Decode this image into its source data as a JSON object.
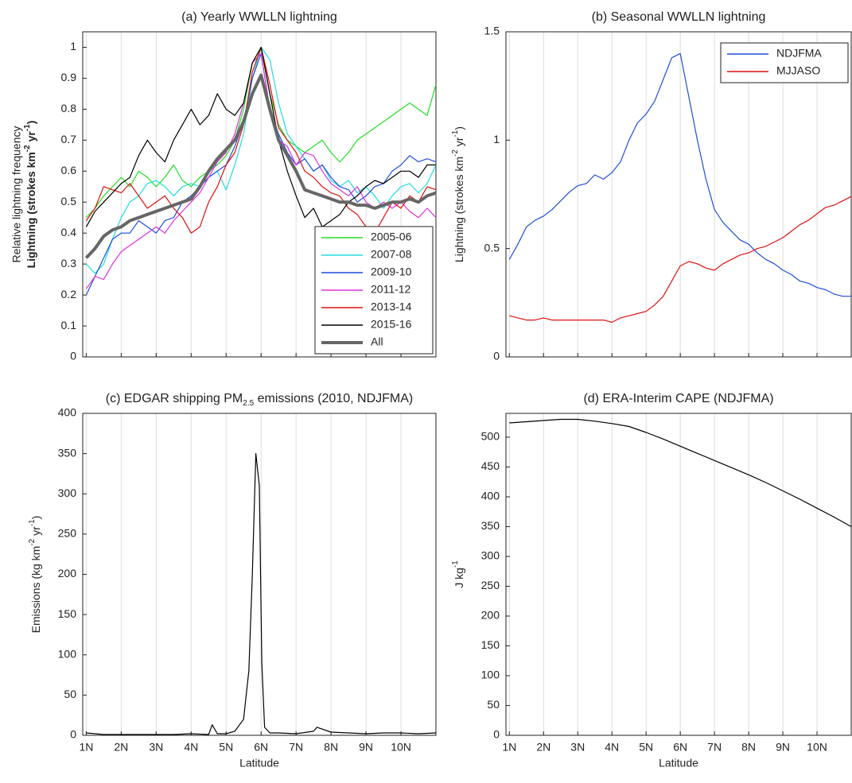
{
  "chart_data": [
    {
      "type": "line",
      "title": "(a) Yearly WWLLN lightning",
      "ylabel": "Relative lightning frequency",
      "ylabel2": [
        "Lightning (strokes km",
        "-2",
        " yr",
        "-1",
        ")"
      ],
      "x": [
        1,
        1.25,
        1.5,
        1.75,
        2,
        2.25,
        2.5,
        2.75,
        3,
        3.25,
        3.5,
        3.75,
        4,
        4.25,
        4.5,
        4.75,
        5,
        5.25,
        5.5,
        5.75,
        6,
        6.25,
        6.5,
        6.75,
        7,
        7.25,
        7.5,
        7.75,
        8,
        8.25,
        8.5,
        8.75,
        9,
        9.25,
        9.5,
        9.75,
        10,
        10.25,
        10.5,
        10.75,
        11
      ],
      "xlim": [
        0.9,
        11
      ],
      "xticks": [
        1,
        2,
        3,
        4,
        5,
        6,
        7,
        8,
        9,
        10
      ],
      "ylim": [
        0,
        1.05
      ],
      "yticks": [
        0,
        0.1,
        0.2,
        0.3,
        0.4,
        0.5,
        0.6,
        0.7,
        0.8,
        0.9,
        1
      ],
      "grid": true,
      "legend": "lower right",
      "series": [
        {
          "name": "2005-06",
          "color": "#22dd22",
          "values": [
            0.45,
            0.48,
            0.52,
            0.55,
            0.58,
            0.55,
            0.6,
            0.58,
            0.55,
            0.58,
            0.62,
            0.57,
            0.55,
            0.58,
            0.6,
            0.62,
            0.65,
            0.7,
            0.8,
            0.95,
            1.0,
            0.85,
            0.75,
            0.7,
            0.68,
            0.66,
            0.68,
            0.7,
            0.66,
            0.63,
            0.66,
            0.7,
            0.72,
            0.74,
            0.76,
            0.78,
            0.8,
            0.82,
            0.8,
            0.78,
            0.88
          ]
        },
        {
          "name": "2007-08",
          "color": "#22dddd",
          "values": [
            0.3,
            0.27,
            0.3,
            0.38,
            0.45,
            0.5,
            0.52,
            0.56,
            0.57,
            0.55,
            0.52,
            0.55,
            0.56,
            0.55,
            0.58,
            0.6,
            0.54,
            0.62,
            0.72,
            0.9,
            1.0,
            0.96,
            0.82,
            0.72,
            0.68,
            0.64,
            0.6,
            0.62,
            0.57,
            0.55,
            0.57,
            0.53,
            0.55,
            0.52,
            0.48,
            0.52,
            0.55,
            0.56,
            0.53,
            0.56,
            0.62
          ]
        },
        {
          "name": "2009-10",
          "color": "#1f4fd8",
          "values": [
            0.2,
            0.26,
            0.32,
            0.38,
            0.4,
            0.4,
            0.44,
            0.42,
            0.4,
            0.44,
            0.45,
            0.5,
            0.52,
            0.55,
            0.58,
            0.6,
            0.62,
            0.68,
            0.76,
            0.9,
            0.98,
            0.8,
            0.72,
            0.66,
            0.62,
            0.64,
            0.6,
            0.62,
            0.58,
            0.55,
            0.54,
            0.5,
            0.52,
            0.55,
            0.56,
            0.6,
            0.62,
            0.65,
            0.63,
            0.64,
            0.63
          ]
        },
        {
          "name": "2011-12",
          "color": "#dd33dd",
          "values": [
            0.22,
            0.26,
            0.25,
            0.3,
            0.34,
            0.36,
            0.38,
            0.4,
            0.42,
            0.4,
            0.44,
            0.47,
            0.5,
            0.53,
            0.58,
            0.63,
            0.66,
            0.72,
            0.82,
            0.95,
            0.98,
            0.8,
            0.7,
            0.68,
            0.62,
            0.66,
            0.65,
            0.6,
            0.56,
            0.54,
            0.52,
            0.55,
            0.5,
            0.48,
            0.5,
            0.48,
            0.5,
            0.47,
            0.45,
            0.48,
            0.45
          ]
        },
        {
          "name": "2013-14",
          "color": "#dd1111",
          "values": [
            0.44,
            0.48,
            0.55,
            0.54,
            0.53,
            0.56,
            0.52,
            0.48,
            0.5,
            0.52,
            0.48,
            0.45,
            0.4,
            0.42,
            0.5,
            0.55,
            0.62,
            0.66,
            0.75,
            0.92,
            1.0,
            0.88,
            0.74,
            0.7,
            0.66,
            0.6,
            0.58,
            0.55,
            0.53,
            0.52,
            0.48,
            0.46,
            0.42,
            0.4,
            0.45,
            0.5,
            0.48,
            0.52,
            0.5,
            0.55,
            0.54
          ]
        },
        {
          "name": "2015-16",
          "color": "#000000",
          "values": [
            0.42,
            0.47,
            0.5,
            0.53,
            0.56,
            0.58,
            0.65,
            0.7,
            0.66,
            0.63,
            0.7,
            0.75,
            0.8,
            0.75,
            0.78,
            0.85,
            0.8,
            0.78,
            0.82,
            0.95,
            1.0,
            0.85,
            0.7,
            0.6,
            0.52,
            0.45,
            0.48,
            0.42,
            0.44,
            0.46,
            0.5,
            0.52,
            0.55,
            0.57,
            0.56,
            0.58,
            0.6,
            0.6,
            0.58,
            0.62,
            0.62
          ]
        },
        {
          "name": "All",
          "color": "#666666",
          "width": 4,
          "values": [
            0.32,
            0.35,
            0.39,
            0.41,
            0.42,
            0.44,
            0.45,
            0.46,
            0.47,
            0.48,
            0.49,
            0.5,
            0.51,
            0.55,
            0.6,
            0.64,
            0.67,
            0.7,
            0.76,
            0.85,
            0.91,
            0.8,
            0.7,
            0.65,
            0.6,
            0.54,
            0.53,
            0.52,
            0.51,
            0.5,
            0.5,
            0.49,
            0.49,
            0.48,
            0.49,
            0.5,
            0.5,
            0.51,
            0.5,
            0.52,
            0.53
          ]
        }
      ]
    },
    {
      "type": "line",
      "title": "(b) Seasonal WWLLN lightning",
      "ylabel": [
        "Lightning (strokes km",
        "-2",
        " yr",
        "-1",
        ")"
      ],
      "x": [
        1,
        1.25,
        1.5,
        1.75,
        2,
        2.25,
        2.5,
        2.75,
        3,
        3.25,
        3.5,
        3.75,
        4,
        4.25,
        4.5,
        4.75,
        5,
        5.25,
        5.5,
        5.75,
        6,
        6.25,
        6.5,
        6.75,
        7,
        7.25,
        7.5,
        7.75,
        8,
        8.25,
        8.5,
        8.75,
        9,
        9.25,
        9.5,
        9.75,
        10,
        10.25,
        10.5,
        10.75,
        11
      ],
      "xlim": [
        0.9,
        11
      ],
      "xticks": [
        1,
        2,
        3,
        4,
        5,
        6,
        7,
        8,
        9,
        10
      ],
      "ylim": [
        0,
        1.5
      ],
      "yticks": [
        0,
        0.5,
        1,
        1.5
      ],
      "grid": true,
      "legend": "upper right",
      "series": [
        {
          "name": "NDJFMA",
          "color": "#1f4fd8",
          "values": [
            0.45,
            0.52,
            0.6,
            0.63,
            0.65,
            0.68,
            0.72,
            0.76,
            0.79,
            0.8,
            0.84,
            0.82,
            0.85,
            0.9,
            1.0,
            1.08,
            1.12,
            1.18,
            1.28,
            1.38,
            1.4,
            1.2,
            1.0,
            0.82,
            0.68,
            0.62,
            0.58,
            0.54,
            0.52,
            0.48,
            0.45,
            0.43,
            0.4,
            0.38,
            0.35,
            0.34,
            0.32,
            0.31,
            0.29,
            0.28,
            0.28
          ]
        },
        {
          "name": "MJJASO",
          "color": "#dd1111",
          "values": [
            0.19,
            0.18,
            0.17,
            0.17,
            0.18,
            0.17,
            0.17,
            0.17,
            0.17,
            0.17,
            0.17,
            0.17,
            0.16,
            0.18,
            0.19,
            0.2,
            0.21,
            0.24,
            0.28,
            0.35,
            0.42,
            0.44,
            0.43,
            0.41,
            0.4,
            0.43,
            0.45,
            0.47,
            0.48,
            0.5,
            0.51,
            0.53,
            0.55,
            0.58,
            0.61,
            0.63,
            0.66,
            0.69,
            0.7,
            0.72,
            0.74
          ]
        }
      ]
    },
    {
      "type": "line",
      "title": [
        "(c) EDGAR shipping PM",
        "2.5",
        " emissions (2010, NDJFMA)"
      ],
      "ylabel": [
        "Emissions (kg km",
        "-2",
        " yr",
        "-1",
        ")"
      ],
      "xlabel": "Latitude",
      "x": [
        1,
        1.5,
        2,
        2.5,
        3,
        3.5,
        4,
        4.5,
        4.6,
        4.75,
        5,
        5.25,
        5.5,
        5.65,
        5.75,
        5.85,
        5.95,
        6.02,
        6.1,
        6.25,
        6.5,
        7,
        7.5,
        7.6,
        8,
        8.5,
        9,
        9.5,
        10,
        10.5,
        11
      ],
      "xlim": [
        0.9,
        11
      ],
      "xticks": [
        {
          "value": 1,
          "label": "1N"
        },
        {
          "value": 2,
          "label": "2N"
        },
        {
          "value": 3,
          "label": "3N"
        },
        {
          "value": 4,
          "label": "4N"
        },
        {
          "value": 5,
          "label": "5N"
        },
        {
          "value": 6,
          "label": "6N"
        },
        {
          "value": 7,
          "label": "7N"
        },
        {
          "value": 8,
          "label": "8N"
        },
        {
          "value": 9,
          "label": "9N"
        },
        {
          "value": 10,
          "label": "10N"
        }
      ],
      "ylim": [
        0,
        400
      ],
      "yticks": [
        0,
        50,
        100,
        150,
        200,
        250,
        300,
        350,
        400
      ],
      "grid": true,
      "series": [
        {
          "color": "#000000",
          "values": [
            3,
            1,
            1,
            1,
            1,
            1,
            2,
            1,
            13,
            2,
            2,
            5,
            20,
            80,
            200,
            350,
            310,
            90,
            10,
            3,
            3,
            2,
            5,
            10,
            4,
            3,
            2,
            3,
            3,
            2,
            3
          ]
        }
      ]
    },
    {
      "type": "line",
      "title": "(d) ERA-Interim CAPE (NDJFMA)",
      "ylabel": [
        "J kg",
        "-1"
      ],
      "xlabel": "Latitude",
      "x": [
        1,
        1.5,
        2,
        2.5,
        3,
        3.5,
        4,
        4.5,
        5,
        5.5,
        6,
        6.5,
        7,
        7.5,
        8,
        8.5,
        9,
        9.5,
        10,
        10.5,
        11
      ],
      "xlim": [
        0.9,
        11
      ],
      "xticks": [
        {
          "value": 1,
          "label": "1N"
        },
        {
          "value": 2,
          "label": "2N"
        },
        {
          "value": 3,
          "label": "3N"
        },
        {
          "value": 4,
          "label": "4N"
        },
        {
          "value": 5,
          "label": "5N"
        },
        {
          "value": 6,
          "label": "6N"
        },
        {
          "value": 7,
          "label": "7N"
        },
        {
          "value": 8,
          "label": "8N"
        },
        {
          "value": 9,
          "label": "9N"
        },
        {
          "value": 10,
          "label": "10N"
        }
      ],
      "ylim": [
        0,
        540
      ],
      "yticks": [
        0,
        50,
        100,
        150,
        200,
        250,
        300,
        350,
        400,
        450,
        500
      ],
      "grid": true,
      "series": [
        {
          "color": "#000000",
          "values": [
            524,
            526,
            528,
            530,
            530,
            527,
            523,
            518,
            508,
            497,
            485,
            473,
            461,
            449,
            437,
            424,
            410,
            396,
            381,
            366,
            350
          ]
        }
      ]
    }
  ]
}
